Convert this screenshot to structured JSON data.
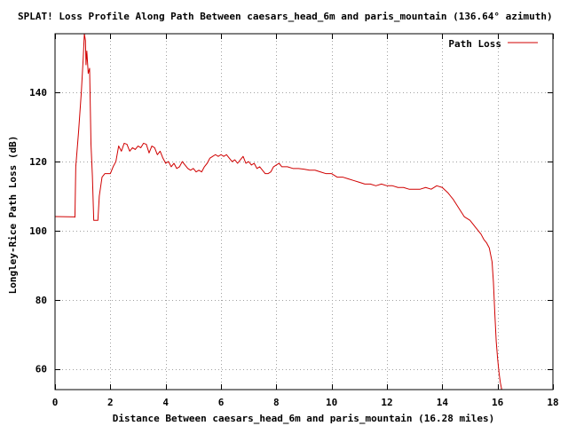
{
  "chart_data": {
    "type": "line",
    "title": "SPLAT! Loss Profile Along Path Between caesars_head_6m and paris_mountain (136.64° azimuth)",
    "xlabel": "Distance Between caesars_head_6m and paris_mountain (16.28 miles)",
    "ylabel": "Longley-Rice Path Loss (dB)",
    "xlim": [
      0,
      18
    ],
    "ylim": [
      54,
      157
    ],
    "xticks": [
      0,
      2,
      4,
      6,
      8,
      10,
      12,
      14,
      16,
      18
    ],
    "yticks": [
      60,
      80,
      100,
      120,
      140
    ],
    "grid": true,
    "legend_position": "top-right",
    "series": [
      {
        "name": "Path Loss",
        "color": "#d00000",
        "points": [
          [
            0.0,
            104.1
          ],
          [
            0.7,
            104.0
          ],
          [
            0.72,
            103.9
          ],
          [
            0.75,
            118.5
          ],
          [
            0.85,
            128.5
          ],
          [
            0.95,
            140.0
          ],
          [
            1.02,
            150.0
          ],
          [
            1.06,
            157.0
          ],
          [
            1.1,
            155.0
          ],
          [
            1.12,
            148.0
          ],
          [
            1.15,
            152.0
          ],
          [
            1.2,
            145.5
          ],
          [
            1.25,
            147.0
          ],
          [
            1.3,
            125.0
          ],
          [
            1.35,
            116.0
          ],
          [
            1.4,
            103.0
          ],
          [
            1.55,
            103.0
          ],
          [
            1.6,
            110.0
          ],
          [
            1.7,
            115.5
          ],
          [
            1.8,
            116.5
          ],
          [
            2.0,
            116.5
          ],
          [
            2.1,
            118.5
          ],
          [
            2.2,
            120.0
          ],
          [
            2.3,
            124.5
          ],
          [
            2.4,
            123.0
          ],
          [
            2.5,
            125.3
          ],
          [
            2.6,
            125.0
          ],
          [
            2.7,
            123.0
          ],
          [
            2.8,
            124.0
          ],
          [
            2.9,
            123.5
          ],
          [
            3.0,
            124.5
          ],
          [
            3.1,
            124.0
          ],
          [
            3.2,
            125.3
          ],
          [
            3.3,
            125.0
          ],
          [
            3.4,
            122.5
          ],
          [
            3.5,
            124.5
          ],
          [
            3.6,
            124.0
          ],
          [
            3.7,
            122.0
          ],
          [
            3.8,
            123.0
          ],
          [
            3.9,
            121.0
          ],
          [
            4.0,
            119.5
          ],
          [
            4.1,
            120.0
          ],
          [
            4.2,
            118.5
          ],
          [
            4.3,
            119.5
          ],
          [
            4.4,
            118.0
          ],
          [
            4.5,
            118.5
          ],
          [
            4.6,
            120.0
          ],
          [
            4.7,
            119.0
          ],
          [
            4.8,
            118.0
          ],
          [
            4.9,
            117.5
          ],
          [
            5.0,
            118.0
          ],
          [
            5.1,
            117.0
          ],
          [
            5.2,
            117.5
          ],
          [
            5.3,
            117.0
          ],
          [
            5.4,
            118.5
          ],
          [
            5.5,
            119.5
          ],
          [
            5.6,
            121.0
          ],
          [
            5.7,
            121.5
          ],
          [
            5.8,
            122.0
          ],
          [
            5.9,
            121.5
          ],
          [
            6.0,
            122.0
          ],
          [
            6.1,
            121.5
          ],
          [
            6.2,
            122.0
          ],
          [
            6.3,
            121.0
          ],
          [
            6.4,
            120.0
          ],
          [
            6.5,
            120.5
          ],
          [
            6.6,
            119.5
          ],
          [
            6.7,
            120.5
          ],
          [
            6.8,
            121.5
          ],
          [
            6.9,
            119.5
          ],
          [
            7.0,
            120.0
          ],
          [
            7.1,
            119.0
          ],
          [
            7.2,
            119.5
          ],
          [
            7.3,
            118.0
          ],
          [
            7.4,
            118.5
          ],
          [
            7.5,
            117.5
          ],
          [
            7.6,
            116.5
          ],
          [
            7.7,
            116.5
          ],
          [
            7.8,
            117.0
          ],
          [
            7.9,
            118.5
          ],
          [
            8.0,
            119.0
          ],
          [
            8.1,
            119.5
          ],
          [
            8.2,
            118.5
          ],
          [
            8.4,
            118.5
          ],
          [
            8.6,
            118.0
          ],
          [
            8.8,
            118.0
          ],
          [
            9.0,
            117.8
          ],
          [
            9.2,
            117.5
          ],
          [
            9.4,
            117.5
          ],
          [
            9.6,
            117.0
          ],
          [
            9.8,
            116.5
          ],
          [
            10.0,
            116.5
          ],
          [
            10.2,
            115.5
          ],
          [
            10.4,
            115.5
          ],
          [
            10.6,
            115.0
          ],
          [
            10.8,
            114.5
          ],
          [
            11.0,
            114.0
          ],
          [
            11.2,
            113.5
          ],
          [
            11.4,
            113.5
          ],
          [
            11.6,
            113.0
          ],
          [
            11.8,
            113.5
          ],
          [
            12.0,
            113.0
          ],
          [
            12.2,
            113.0
          ],
          [
            12.4,
            112.5
          ],
          [
            12.6,
            112.5
          ],
          [
            12.8,
            112.0
          ],
          [
            13.0,
            112.0
          ],
          [
            13.2,
            112.0
          ],
          [
            13.4,
            112.5
          ],
          [
            13.6,
            112.0
          ],
          [
            13.8,
            113.0
          ],
          [
            14.0,
            112.5
          ],
          [
            14.2,
            111.0
          ],
          [
            14.4,
            109.0
          ],
          [
            14.6,
            106.5
          ],
          [
            14.8,
            104.0
          ],
          [
            15.0,
            103.0
          ],
          [
            15.2,
            101.0
          ],
          [
            15.4,
            99.0
          ],
          [
            15.5,
            97.5
          ],
          [
            15.6,
            96.5
          ],
          [
            15.7,
            95.0
          ],
          [
            15.8,
            91.0
          ],
          [
            15.85,
            85.0
          ],
          [
            15.9,
            76.0
          ],
          [
            15.95,
            68.0
          ],
          [
            16.0,
            63.0
          ],
          [
            16.05,
            59.0
          ],
          [
            16.1,
            56.0
          ],
          [
            16.15,
            54.0
          ]
        ]
      }
    ]
  }
}
